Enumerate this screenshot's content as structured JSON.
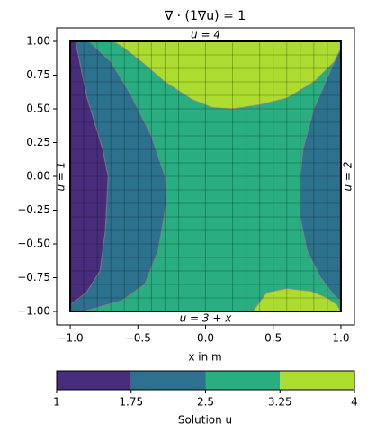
{
  "chart_data": {
    "type": "contour",
    "title": "∇ · (1∇u) = 1",
    "xlabel": "x in m",
    "xlim": [
      -1.1,
      1.1
    ],
    "ylim": [
      -1.1,
      1.1
    ],
    "xticks": [
      {
        "value": -1,
        "label": "−1.0"
      },
      {
        "value": -0.5,
        "label": "−0.5"
      },
      {
        "value": 0,
        "label": "0.0"
      },
      {
        "value": 0.5,
        "label": "0.5"
      },
      {
        "value": 1,
        "label": "1.0"
      }
    ],
    "yticks": [
      {
        "value": -1,
        "label": "−1.00"
      },
      {
        "value": -0.75,
        "label": "−0.75"
      },
      {
        "value": -0.5,
        "label": "−0.50"
      },
      {
        "value": -0.25,
        "label": "−0.25"
      },
      {
        "value": 0,
        "label": "0.00"
      },
      {
        "value": 0.25,
        "label": "0.25"
      },
      {
        "value": 0.5,
        "label": "0.50"
      },
      {
        "value": 0.75,
        "label": "0.75"
      },
      {
        "value": 1,
        "label": "1.00"
      }
    ],
    "domain": {
      "x": [
        -1,
        1
      ],
      "y": [
        -1,
        1
      ]
    },
    "mesh_divisions": 20,
    "background_color": "#28ae80",
    "regions": [
      {
        "color": "#2c728e",
        "x": [
          -1,
          -0.86,
          -0.7,
          -0.55,
          -0.4,
          -0.3,
          -0.29,
          -0.35,
          -0.45,
          -0.62,
          -0.9,
          -1
        ],
        "y": [
          1,
          1,
          0.85,
          0.6,
          0.3,
          0,
          -0.2,
          -0.55,
          -0.8,
          -0.92,
          -1,
          -1
        ]
      },
      {
        "color": "#472d7b",
        "x": [
          -1,
          -0.96,
          -0.88,
          -0.76,
          -0.72,
          -0.74,
          -0.78,
          -0.88,
          -1
        ],
        "y": [
          1,
          1,
          0.6,
          0.2,
          0,
          -0.4,
          -0.7,
          -0.86,
          -0.95
        ]
      },
      {
        "color": "#2c728e",
        "x": [
          1,
          0.93,
          0.8,
          0.72,
          0.7,
          0.7,
          0.75,
          0.85,
          0.95,
          1
        ],
        "y": [
          0.95,
          0.8,
          0.5,
          0.2,
          0,
          -0.3,
          -0.55,
          -0.75,
          -0.88,
          -0.92
        ]
      },
      {
        "color": "#addc30",
        "x": [
          -0.68,
          1,
          1,
          0.95,
          0.8,
          0.6,
          0.4,
          0.2,
          0.05,
          -0.1,
          -0.3,
          -0.45,
          -0.6
        ],
        "y": [
          1,
          1,
          0.95,
          0.85,
          0.7,
          0.58,
          0.53,
          0.5,
          0.51,
          0.57,
          0.7,
          0.83,
          0.95
        ]
      },
      {
        "color": "#addc30",
        "x": [
          0.35,
          0.45,
          0.6,
          0.78,
          0.9,
          0.97,
          1
        ],
        "y": [
          -1,
          -0.86,
          -0.83,
          -0.85,
          -0.9,
          -0.95,
          -1
        ]
      }
    ],
    "boundary_labels": {
      "top": "u = 4",
      "bottom": "u = 3 + x",
      "left": "u = 1",
      "right": "u = 2"
    },
    "colorbar": {
      "levels": [
        1,
        1.75,
        2.5,
        3.25,
        4
      ],
      "colors": [
        "#472d7b",
        "#2c728e",
        "#28ae80",
        "#addc30"
      ],
      "label": "Solution u"
    }
  }
}
